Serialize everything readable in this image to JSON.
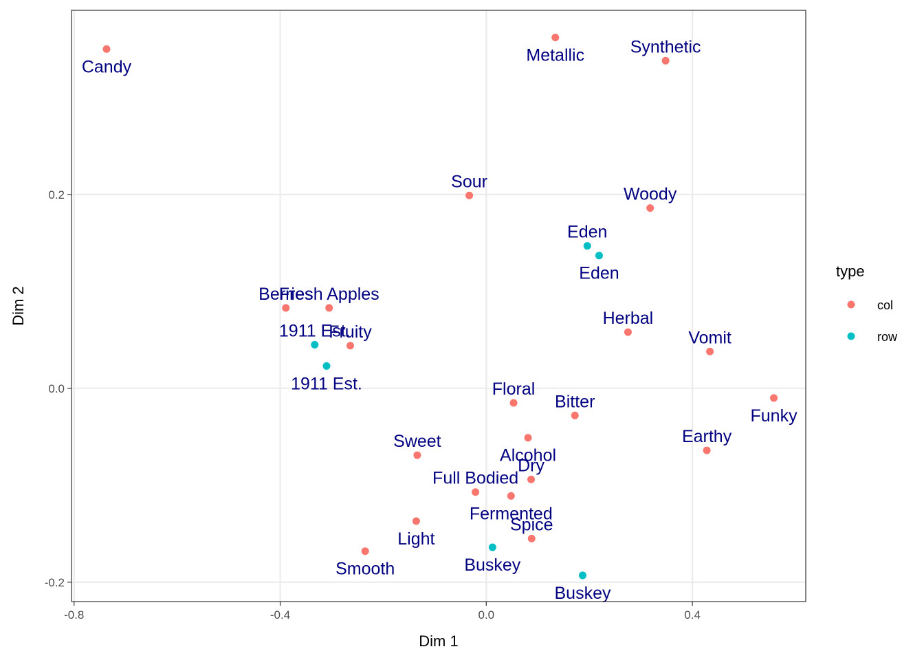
{
  "chart_data": {
    "type": "scatter",
    "title": "",
    "xlabel": "Dim 1",
    "ylabel": "Dim 2",
    "xlim": [
      -0.805,
      0.62
    ],
    "ylim": [
      -0.22,
      0.39
    ],
    "x_ticks": [
      -0.8,
      -0.4,
      0.0,
      0.4
    ],
    "x_tick_labels": [
      "-0.8",
      "-0.4",
      "0.0",
      "0.4"
    ],
    "y_ticks": [
      -0.2,
      0.0,
      0.2
    ],
    "y_tick_labels": [
      "-0.2",
      "0.0",
      "0.2"
    ],
    "grid": true,
    "label_color": "#000080",
    "legend": {
      "title": "type",
      "position": "right",
      "entries": [
        {
          "name": "col",
          "color": "#F8766D"
        },
        {
          "name": "row",
          "color": "#00BFC4"
        }
      ]
    },
    "series": [
      {
        "name": "col",
        "color": "#F8766D",
        "points": [
          {
            "label": "Candy",
            "x": -0.737,
            "y": 0.35,
            "label_pos": "below"
          },
          {
            "label": "Metallic",
            "x": 0.134,
            "y": 0.362,
            "label_pos": "below"
          },
          {
            "label": "Synthetic",
            "x": 0.348,
            "y": 0.338,
            "label_pos": "above"
          },
          {
            "label": "Sour",
            "x": -0.033,
            "y": 0.199,
            "label_pos": "above"
          },
          {
            "label": "Woody",
            "x": 0.318,
            "y": 0.186,
            "label_pos": "above"
          },
          {
            "label": "Berries",
            "x": -0.389,
            "y": 0.083,
            "label_pos": "above"
          },
          {
            "label": "Fresh Apples",
            "x": -0.305,
            "y": 0.083,
            "label_pos": "above"
          },
          {
            "label": "Fruity",
            "x": -0.264,
            "y": 0.044,
            "label_pos": "above"
          },
          {
            "label": "Herbal",
            "x": 0.275,
            "y": 0.058,
            "label_pos": "above"
          },
          {
            "label": "Vomit",
            "x": 0.434,
            "y": 0.038,
            "label_pos": "above"
          },
          {
            "label": "Funky",
            "x": 0.558,
            "y": -0.01,
            "label_pos": "below"
          },
          {
            "label": "Floral",
            "x": 0.053,
            "y": -0.015,
            "label_pos": "above"
          },
          {
            "label": "Bitter",
            "x": 0.172,
            "y": -0.028,
            "label_pos": "above"
          },
          {
            "label": "Earthy",
            "x": 0.428,
            "y": -0.064,
            "label_pos": "above"
          },
          {
            "label": "Alcohol",
            "x": 0.081,
            "y": -0.051,
            "label_pos": "below"
          },
          {
            "label": "Sweet",
            "x": -0.134,
            "y": -0.069,
            "label_pos": "above"
          },
          {
            "label": "Dry",
            "x": 0.087,
            "y": -0.094,
            "label_pos": "above"
          },
          {
            "label": "Full Bodied",
            "x": -0.021,
            "y": -0.107,
            "label_pos": "above"
          },
          {
            "label": "Fermented",
            "x": 0.048,
            "y": -0.111,
            "label_pos": "below"
          },
          {
            "label": "Light",
            "x": -0.136,
            "y": -0.137,
            "label_pos": "below"
          },
          {
            "label": "Spice",
            "x": 0.088,
            "y": -0.155,
            "label_pos": "above"
          },
          {
            "label": "Smooth",
            "x": -0.235,
            "y": -0.168,
            "label_pos": "below"
          }
        ]
      },
      {
        "name": "row",
        "color": "#00BFC4",
        "points": [
          {
            "label": "Eden",
            "x": 0.196,
            "y": 0.147,
            "label_pos": "above"
          },
          {
            "label": "Eden",
            "x": 0.219,
            "y": 0.137,
            "label_pos": "below"
          },
          {
            "label": "1911 Est.",
            "x": -0.333,
            "y": 0.045,
            "label_pos": "above"
          },
          {
            "label": "1911 Est.",
            "x": -0.31,
            "y": 0.023,
            "label_pos": "below"
          },
          {
            "label": "Buskey",
            "x": 0.012,
            "y": -0.164,
            "label_pos": "below"
          },
          {
            "label": "Buskey",
            "x": 0.187,
            "y": -0.193,
            "label_pos": "below"
          }
        ]
      }
    ]
  }
}
